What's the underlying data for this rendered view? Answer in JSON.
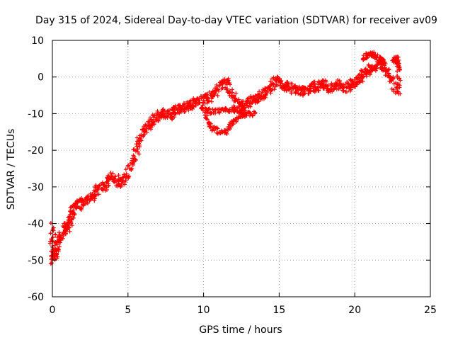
{
  "chart_data": {
    "type": "scatter",
    "title": "Day 315 of 2024, Sidereal Day-to-day VTEC variation (SDTVAR) for receiver av09",
    "xlabel": "GPS time / hours",
    "ylabel": "SDTVAR / TECUs",
    "xlim": [
      0,
      25
    ],
    "ylim": [
      -60,
      10
    ],
    "xticks": [
      0,
      5,
      10,
      15,
      20,
      25
    ],
    "yticks": [
      10,
      0,
      -10,
      -20,
      -30,
      -40,
      -50,
      -60
    ],
    "xtick_labels": [
      "0",
      "5",
      "10",
      "15",
      "20",
      "25"
    ],
    "ytick_labels": [
      "10",
      "0",
      "-10",
      "-20",
      "-30",
      "-40",
      "-50",
      "-60"
    ],
    "grid": true,
    "marker": "+",
    "color": "#ff0000",
    "series": [
      {
        "name": "SDTVAR",
        "trace": [
          [
            0.0,
            -46
          ],
          [
            0.02,
            -41
          ],
          [
            0.05,
            -50
          ],
          [
            0.1,
            -49
          ],
          [
            0.2,
            -48
          ],
          [
            0.3,
            -47
          ],
          [
            0.4,
            -46
          ],
          [
            0.5,
            -44
          ],
          [
            0.7,
            -43
          ],
          [
            0.8,
            -41
          ],
          [
            0.9,
            -41
          ],
          [
            1.0,
            -42
          ],
          [
            1.1,
            -40
          ],
          [
            1.2,
            -39
          ],
          [
            1.3,
            -37
          ],
          [
            1.4,
            -36
          ],
          [
            1.6,
            -35
          ],
          [
            1.8,
            -35
          ],
          [
            2.0,
            -34
          ],
          [
            2.2,
            -34
          ],
          [
            2.4,
            -33
          ],
          [
            2.6,
            -33
          ],
          [
            2.8,
            -32
          ],
          [
            3.0,
            -31
          ],
          [
            3.2,
            -30
          ],
          [
            3.4,
            -30
          ],
          [
            3.6,
            -29
          ],
          [
            3.8,
            -28
          ],
          [
            4.0,
            -27
          ],
          [
            4.2,
            -28
          ],
          [
            4.4,
            -29
          ],
          [
            4.6,
            -29
          ],
          [
            4.8,
            -28
          ],
          [
            5.0,
            -26
          ],
          [
            5.2,
            -24
          ],
          [
            5.4,
            -22
          ],
          [
            5.6,
            -20
          ],
          [
            5.8,
            -17
          ],
          [
            6.0,
            -15
          ],
          [
            6.2,
            -14
          ],
          [
            6.4,
            -13
          ],
          [
            6.6,
            -12
          ],
          [
            6.8,
            -11
          ],
          [
            7.0,
            -11
          ],
          [
            7.2,
            -10
          ],
          [
            7.4,
            -10
          ],
          [
            7.6,
            -10
          ],
          [
            7.8,
            -11
          ],
          [
            8.0,
            -9.5
          ],
          [
            8.2,
            -9
          ],
          [
            8.4,
            -9
          ],
          [
            8.6,
            -8.5
          ],
          [
            8.8,
            -8
          ],
          [
            9.0,
            -8
          ],
          [
            9.2,
            -7.5
          ],
          [
            9.4,
            -7
          ],
          [
            9.6,
            -7
          ],
          [
            9.8,
            -6.5
          ],
          [
            10.0,
            -6
          ],
          [
            10.2,
            -6
          ],
          [
            10.4,
            -6
          ],
          [
            10.6,
            -5
          ],
          [
            10.8,
            -4
          ],
          [
            11.0,
            -3
          ],
          [
            11.2,
            -2
          ],
          [
            11.4,
            -1
          ],
          [
            11.6,
            -2
          ],
          [
            11.8,
            -4
          ],
          [
            12.0,
            -6
          ],
          [
            12.2,
            -7.5
          ],
          [
            12.4,
            -8
          ],
          [
            12.6,
            -8
          ],
          [
            12.8,
            -7
          ],
          [
            13.0,
            -7
          ],
          [
            13.2,
            -6.5
          ],
          [
            13.4,
            -6
          ],
          [
            13.6,
            -5.5
          ],
          [
            13.8,
            -5
          ],
          [
            14.0,
            -4.5
          ],
          [
            14.2,
            -4
          ],
          [
            14.4,
            -3
          ],
          [
            14.6,
            -2
          ],
          [
            14.8,
            -1
          ],
          [
            15.0,
            -1
          ],
          [
            15.2,
            -2
          ],
          [
            15.4,
            -3
          ],
          [
            15.6,
            -2
          ],
          [
            15.8,
            -3
          ],
          [
            16.0,
            -3.5
          ],
          [
            16.2,
            -4
          ],
          [
            16.4,
            -4
          ],
          [
            16.6,
            -4
          ],
          [
            16.8,
            -3.5
          ],
          [
            17.0,
            -3
          ],
          [
            17.2,
            -3
          ],
          [
            17.4,
            -2.5
          ],
          [
            17.6,
            -2.5
          ],
          [
            17.8,
            -2
          ],
          [
            18.0,
            -2
          ],
          [
            18.2,
            -2.5
          ],
          [
            18.4,
            -3
          ],
          [
            18.6,
            -2.5
          ],
          [
            18.8,
            -2
          ],
          [
            19.0,
            -2
          ],
          [
            19.2,
            -2.5
          ],
          [
            19.4,
            -3
          ],
          [
            19.6,
            -2.5
          ],
          [
            19.8,
            -2
          ],
          [
            20.0,
            -1.5
          ],
          [
            20.2,
            -1
          ],
          [
            20.4,
            0
          ],
          [
            20.6,
            1
          ],
          [
            20.8,
            1.5
          ],
          [
            21.0,
            2
          ],
          [
            21.2,
            2.5
          ],
          [
            21.4,
            3
          ],
          [
            21.6,
            3.5
          ],
          [
            21.8,
            3
          ],
          [
            22.0,
            2
          ],
          [
            22.2,
            1
          ],
          [
            22.4,
            0
          ],
          [
            22.6,
            -2
          ],
          [
            22.8,
            -4
          ]
        ],
        "loops": [
          [
            [
              9.8,
              -8
            ],
            [
              10.2,
              -9
            ],
            [
              10.6,
              -9.5
            ],
            [
              11.0,
              -9.5
            ],
            [
              11.4,
              -9
            ],
            [
              11.8,
              -9
            ],
            [
              12.2,
              -9
            ],
            [
              12.6,
              -9.5
            ],
            [
              13.0,
              -10
            ],
            [
              13.4,
              -10
            ]
          ],
          [
            [
              10.0,
              -10
            ],
            [
              10.3,
              -12
            ],
            [
              10.6,
              -14
            ],
            [
              11.0,
              -15
            ],
            [
              11.4,
              -15
            ],
            [
              11.7,
              -14
            ],
            [
              12.0,
              -12
            ],
            [
              12.4,
              -11
            ],
            [
              12.8,
              -10.5
            ]
          ],
          [
            [
              20.6,
              5
            ],
            [
              20.8,
              5.8
            ],
            [
              21.0,
              6.2
            ],
            [
              21.2,
              6
            ],
            [
              21.4,
              5.5
            ],
            [
              21.6,
              5
            ],
            [
              21.8,
              4.5
            ],
            [
              22.0,
              4
            ]
          ],
          [
            [
              22.6,
              5
            ],
            [
              22.7,
              4.5
            ],
            [
              22.8,
              5
            ],
            [
              22.8,
              3.5
            ],
            [
              22.9,
              2.5
            ],
            [
              22.9,
              -2
            ],
            [
              22.9,
              -4.6
            ]
          ]
        ]
      }
    ]
  }
}
